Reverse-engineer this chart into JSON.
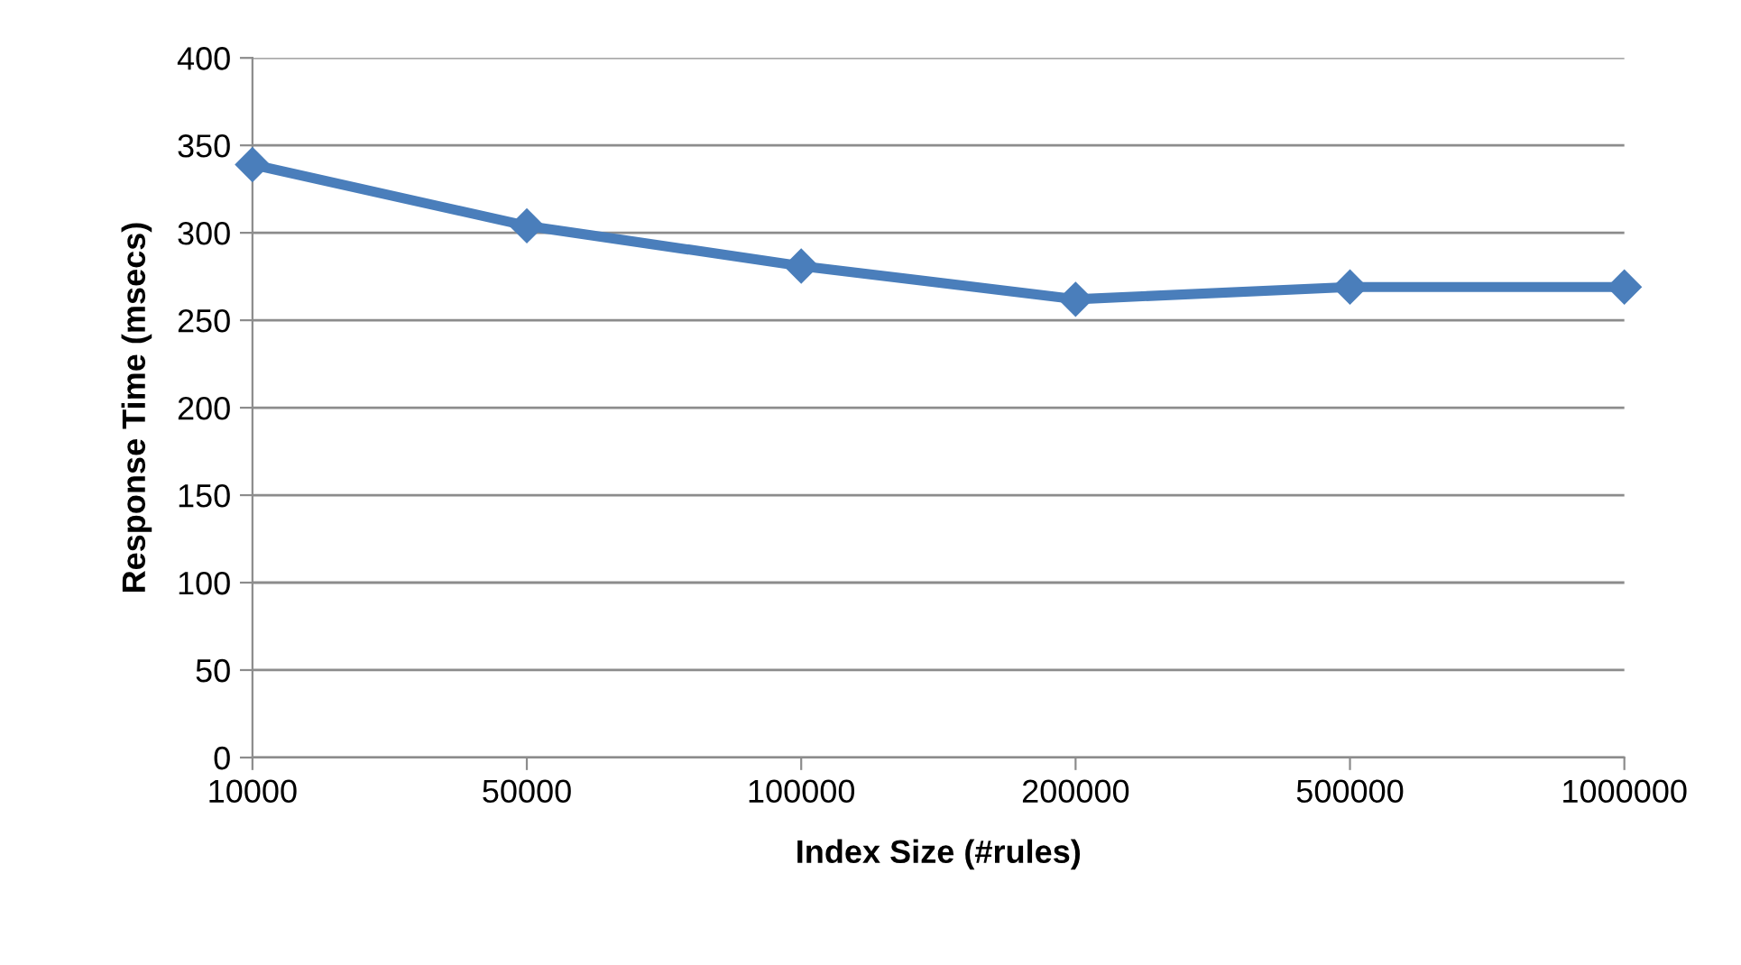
{
  "chart_data": {
    "type": "line",
    "xlabel": "Index Size (#rules)",
    "ylabel": "Response Time (msecs)",
    "categories": [
      "10000",
      "50000",
      "100000",
      "200000",
      "500000",
      "1000000"
    ],
    "series": [
      {
        "color": "#4a7ebb",
        "values": [
          339,
          304,
          281,
          262,
          269,
          269
        ]
      }
    ],
    "ylim": [
      0,
      400
    ],
    "yticks": [
      0,
      50,
      100,
      150,
      200,
      250,
      300,
      350,
      400
    ],
    "grid": "y",
    "marker": "diamond",
    "line_style": "solid"
  }
}
